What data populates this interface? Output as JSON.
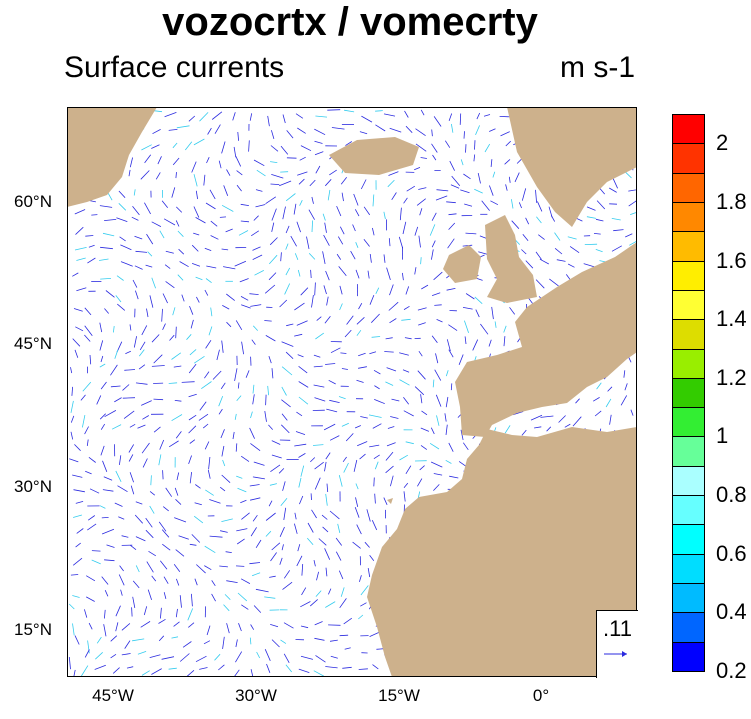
{
  "title": "vozocrtx / vomecrty",
  "subtitle": "Surface currents",
  "units": "m s-1",
  "map": {
    "land_color": "#cdb18c",
    "ocean_color": "#ffffff",
    "vector_color": "#2a2adf",
    "lat_labels": [
      "60°N",
      "45°N",
      "30°N",
      "15°N"
    ],
    "lon_labels": [
      "45°W",
      "30°W",
      "15°W",
      "0°"
    ],
    "reference_vector": ".11"
  },
  "colorbar": {
    "labels": [
      "2",
      "1.8",
      "1.6",
      "1.4",
      "1.2",
      "1",
      "0.8",
      "0.6",
      "0.4",
      "0.2"
    ],
    "colors": [
      "#ff0000",
      "#ff3300",
      "#ff6600",
      "#ff8800",
      "#ffbb00",
      "#ffee00",
      "#ffff33",
      "#dddd00",
      "#99ee00",
      "#33cc00",
      "#33ee33",
      "#66ff99",
      "#aaffff",
      "#66ffff",
      "#00ffff",
      "#00ddff",
      "#00bbff",
      "#0066ff",
      "#0000ff"
    ]
  }
}
